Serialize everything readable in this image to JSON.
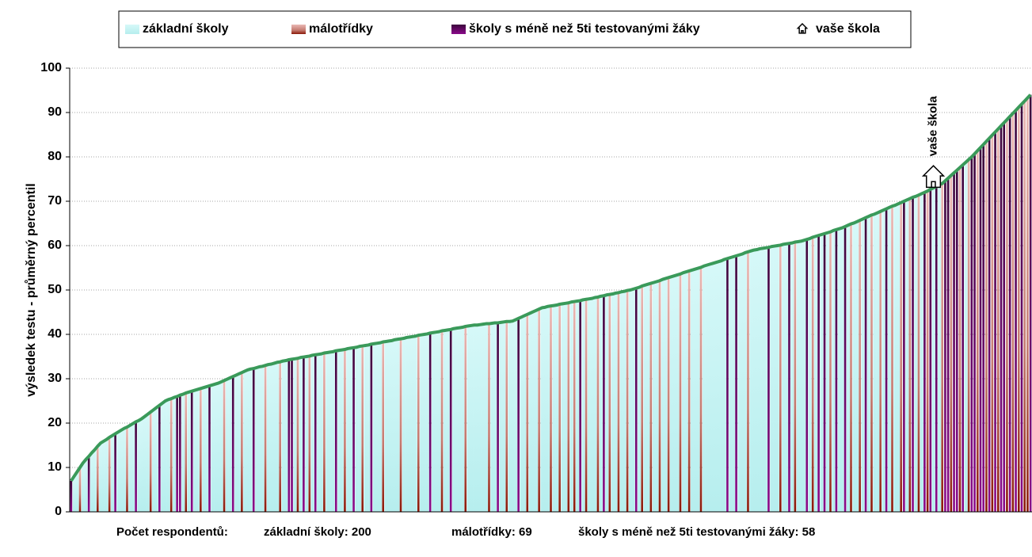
{
  "chart_data": {
    "type": "bar",
    "y_label": "výsledek testu - průměrný percentil",
    "ylim": [
      0,
      100
    ],
    "yticks": [
      0,
      10,
      20,
      30,
      40,
      50,
      60,
      70,
      80,
      90,
      100
    ],
    "grid": true,
    "xlim": [
      0,
      327
    ],
    "line_color": "#3a9a5a",
    "footer": [
      "Počet respondentů:",
      "základní školy: 200",
      "málotřídky: 69",
      "školy s méně než 5ti testovanými žáky: 58"
    ],
    "values": [
      7,
      8,
      9,
      10,
      11,
      11.8,
      12.5,
      13.3,
      14,
      14.8,
      15.5,
      15.9,
      16.3,
      16.8,
      17.2,
      17.6,
      18,
      18.4,
      18.8,
      19.1,
      19.5,
      19.9,
      20.3,
      20.6,
      21,
      21.5,
      22,
      22.5,
      23,
      23.5,
      24,
      24.5,
      25,
      25.3,
      25.5,
      25.8,
      26,
      26.3,
      26.5,
      26.8,
      27,
      27.2,
      27.4,
      27.6,
      27.8,
      28,
      28.2,
      28.4,
      28.6,
      28.8,
      29,
      29.3,
      29.6,
      29.9,
      30.2,
      30.5,
      30.8,
      31.1,
      31.4,
      31.7,
      32,
      32.2,
      32.3,
      32.5,
      32.7,
      32.8,
      33,
      33.2,
      33.3,
      33.5,
      33.7,
      33.8,
      34,
      34.1,
      34.3,
      34.4,
      34.5,
      34.6,
      34.8,
      34.9,
      35,
      35.1,
      35.3,
      35.4,
      35.5,
      35.6,
      35.8,
      35.9,
      36,
      36.1,
      36.3,
      36.4,
      36.5,
      36.6,
      36.8,
      36.9,
      37,
      37.1,
      37.3,
      37.4,
      37.5,
      37.6,
      37.8,
      37.9,
      38,
      38.1,
      38.3,
      38.4,
      38.5,
      38.6,
      38.8,
      38.9,
      39,
      39.1,
      39.3,
      39.4,
      39.5,
      39.6,
      39.8,
      39.9,
      40,
      40.1,
      40.3,
      40.4,
      40.5,
      40.6,
      40.8,
      40.9,
      41,
      41.1,
      41.3,
      41.4,
      41.5,
      41.6,
      41.8,
      41.9,
      42,
      42.1,
      42.1,
      42.2,
      42.3,
      42.4,
      42.4,
      42.5,
      42.6,
      42.6,
      42.7,
      42.8,
      42.9,
      42.9,
      43,
      43.3,
      43.6,
      43.9,
      44.2,
      44.5,
      44.8,
      45.1,
      45.4,
      45.7,
      46,
      46.1,
      46.3,
      46.4,
      46.5,
      46.6,
      46.8,
      46.9,
      47,
      47.1,
      47.3,
      47.4,
      47.5,
      47.6,
      47.8,
      47.9,
      48,
      48.1,
      48.3,
      48.4,
      48.6,
      48.7,
      48.9,
      49,
      49.1,
      49.3,
      49.4,
      49.6,
      49.7,
      49.9,
      50,
      50.2,
      50.4,
      50.6,
      50.9,
      51.1,
      51.3,
      51.5,
      51.7,
      51.9,
      52.1,
      52.4,
      52.6,
      52.8,
      53,
      53.2,
      53.4,
      53.6,
      53.9,
      54.1,
      54.3,
      54.5,
      54.7,
      54.9,
      55.1,
      55.4,
      55.6,
      55.8,
      56,
      56.2,
      56.4,
      56.6,
      56.9,
      57.1,
      57.3,
      57.5,
      57.7,
      57.9,
      58.1,
      58.4,
      58.6,
      58.8,
      59,
      59.1,
      59.3,
      59.4,
      59.5,
      59.6,
      59.8,
      59.9,
      60,
      60.1,
      60.3,
      60.4,
      60.5,
      60.6,
      60.8,
      60.9,
      61,
      61.2,
      61.4,
      61.6,
      61.9,
      62.1,
      62.3,
      62.5,
      62.7,
      62.9,
      63.1,
      63.4,
      63.6,
      63.8,
      64,
      64.3,
      64.6,
      64.9,
      65.1,
      65.4,
      65.7,
      66,
      66.3,
      66.6,
      66.9,
      67.1,
      67.4,
      67.7,
      68,
      68.3,
      68.6,
      68.9,
      69.1,
      69.4,
      69.7,
      70,
      70.3,
      70.6,
      70.9,
      71.1,
      71.4,
      71.7,
      72,
      72.3,
      72.7,
      73,
      73.3,
      73.7,
      74,
      74.6,
      75.2,
      75.8,
      76.4,
      77,
      77.6,
      78.2,
      78.8,
      79.4,
      80,
      80.7,
      81.4,
      82.1,
      82.8,
      83.5,
      84.2,
      84.9,
      85.6,
      86.3,
      87,
      87.7,
      88.4,
      89.1,
      89.8,
      90.5,
      91.2,
      91.9,
      92.6,
      93.3,
      94
    ],
    "series": [
      {
        "name": "základní školy",
        "color": "#c4f4f4"
      },
      {
        "name": "málotřídky",
        "color": "#c08080",
        "x": [
          3,
          9,
          13,
          19,
          27,
          34,
          39,
          44,
          52,
          58,
          66,
          71,
          77,
          81,
          86,
          93,
          99,
          106,
          112,
          118,
          126,
          134,
          142,
          148,
          155,
          159,
          163,
          166,
          169,
          171,
          175,
          179,
          183,
          186,
          189,
          194,
          197,
          200,
          203,
          207,
          210,
          214,
          230,
          241,
          246,
          252,
          258,
          265,
          268,
          272,
          275,
          279,
          282,
          285,
          288,
          291,
          296,
          299,
          302,
          305,
          308,
          311,
          313,
          315,
          318,
          320,
          322,
          324,
          325
        ]
      },
      {
        "name": "školy s méně než 5ti testovanými žáky",
        "color": "#5a0a5a",
        "x": [
          0,
          6,
          15,
          22,
          30,
          36,
          37,
          41,
          47,
          55,
          62,
          74,
          75,
          79,
          83,
          90,
          96,
          102,
          122,
          129,
          145,
          152,
          173,
          181,
          192,
          223,
          226,
          237,
          244,
          250,
          254,
          256,
          260,
          263,
          270,
          277,
          283,
          286,
          290,
          292,
          294,
          297,
          298,
          300,
          301,
          303,
          306,
          307,
          309,
          310,
          312,
          314,
          316,
          317,
          319,
          321,
          323,
          326
        ]
      },
      {
        "name": "vaše škola",
        "color": "#ffffff",
        "x": [
          293
        ]
      }
    ]
  }
}
